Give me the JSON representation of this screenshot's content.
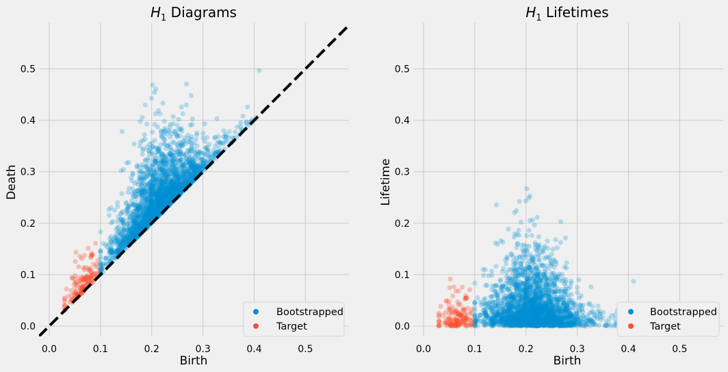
{
  "chart_data": [
    {
      "type": "scatter",
      "title": "H₁ Diagrams",
      "title_base": "H",
      "title_sub": "1",
      "title_rest": " Diagrams",
      "xlabel": "Birth",
      "ylabel": "Death",
      "xlim": [
        -0.02,
        0.585
      ],
      "ylim": [
        -0.02,
        0.59
      ],
      "xticks": [
        "0.0",
        "0.1",
        "0.2",
        "0.3",
        "0.4",
        "0.5"
      ],
      "yticks": [
        "0.0",
        "0.1",
        "0.2",
        "0.3",
        "0.4",
        "0.5"
      ],
      "grid": true,
      "legend": {
        "placement": "lower-right",
        "entries": [
          "Bootstrapped",
          "Target"
        ]
      },
      "reference_line": {
        "style": "dashed",
        "color": "#000000",
        "from": [
          -0.02,
          -0.02
        ],
        "to": [
          0.59,
          0.59
        ]
      },
      "series": [
        {
          "name": "Bootstrapped",
          "color": "#008fd5",
          "alpha": 0.25,
          "approx_points": 2500,
          "distribution": {
            "birth_mean": 0.215,
            "birth_sd": 0.045,
            "birth_range": [
              0.1,
              0.41
            ],
            "lifetime_typical": [
              0,
              0.27
            ]
          }
        },
        {
          "name": "Target",
          "color": "#fc4f30",
          "alpha": 0.3,
          "approx_points": 150,
          "distribution": {
            "birth_mean": 0.065,
            "birth_sd": 0.015,
            "birth_range": [
              0.03,
              0.1
            ],
            "lifetime_typical": [
              0,
              0.11
            ]
          }
        }
      ]
    },
    {
      "type": "scatter",
      "title": "H₁ Lifetimes",
      "title_base": "H",
      "title_sub": "1",
      "title_rest": " Lifetimes",
      "xlabel": "Birth",
      "ylabel": "Lifetime",
      "xlim": [
        -0.02,
        0.585
      ],
      "ylim": [
        -0.02,
        0.59
      ],
      "xticks": [
        "0.0",
        "0.1",
        "0.2",
        "0.3",
        "0.4",
        "0.5"
      ],
      "yticks": [
        "0.0",
        "0.1",
        "0.2",
        "0.3",
        "0.4",
        "0.5"
      ],
      "grid": true,
      "legend": {
        "placement": "lower-right",
        "entries": [
          "Bootstrapped",
          "Target"
        ]
      },
      "series": [
        {
          "name": "Bootstrapped",
          "color": "#008fd5",
          "alpha": 0.25,
          "approx_points": 2500
        },
        {
          "name": "Target",
          "color": "#fc4f30",
          "alpha": 0.3,
          "approx_points": 150
        }
      ]
    }
  ]
}
